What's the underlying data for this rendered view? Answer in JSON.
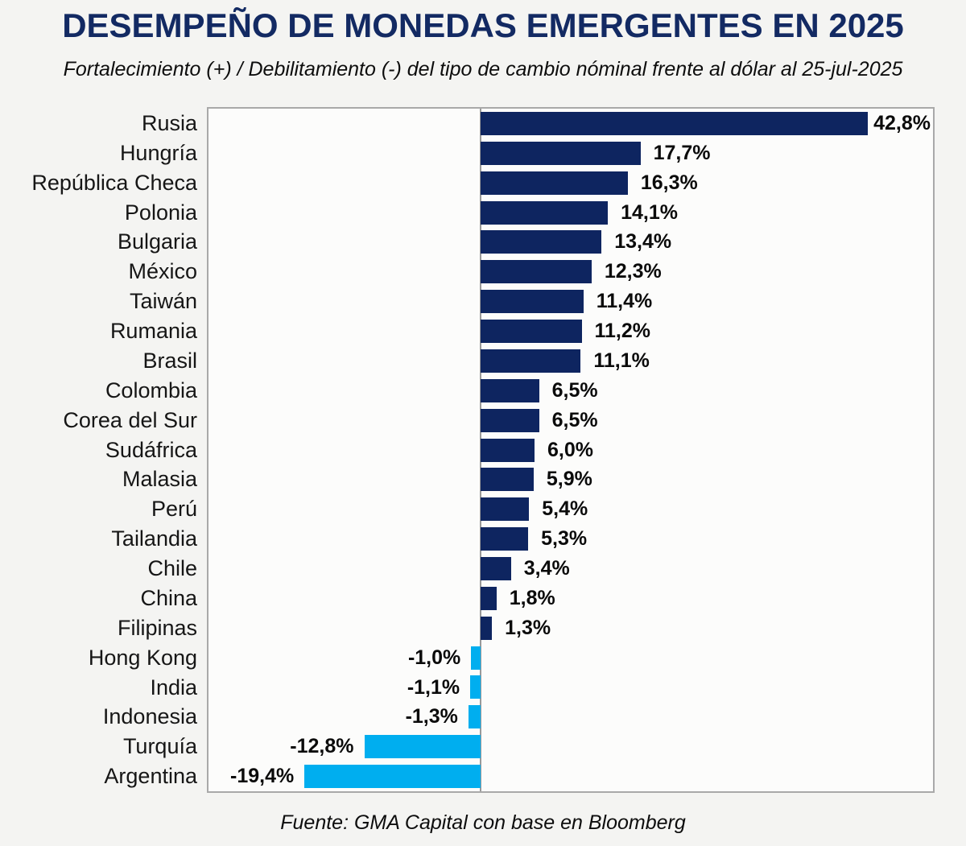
{
  "title": "DESEMPEÑO DE MONEDAS EMERGENTES EN 2025",
  "subtitle": "Fortalecimiento (+) / Debilitamiento (-) del tipo de cambio nóminal frente al dólar al 25-jul-2025",
  "source": "Fuente: GMA Capital con base en Bloomberg",
  "colors": {
    "title": "#132a63",
    "positive_bar": "#0e2560",
    "negative_bar": "#00aeef",
    "plot_border": "#a9a9a9",
    "background": "#f4f4f2"
  },
  "chart_data": {
    "type": "bar",
    "orientation": "horizontal",
    "title": "DESEMPEÑO DE MONEDAS EMERGENTES EN 2025",
    "subtitle": "Fortalecimiento (+) / Debilitamiento (-) del tipo de cambio nóminal frente al dólar al 25-jul-2025",
    "xlabel": "",
    "ylabel": "",
    "xlim": [
      -30,
      50
    ],
    "grid": false,
    "zero_line": true,
    "legend": "none",
    "categories": [
      "Rusia",
      "Hungría",
      "República Checa",
      "Polonia",
      "Bulgaria",
      "México",
      "Taiwán",
      "Rumania",
      "Brasil",
      "Colombia",
      "Corea del Sur",
      "Sudáfrica",
      "Malasia",
      "Perú",
      "Tailandia",
      "Chile",
      "China",
      "Filipinas",
      "Hong Kong",
      "India",
      "Indonesia",
      "Turquía",
      "Argentina"
    ],
    "values": [
      42.8,
      17.7,
      16.3,
      14.1,
      13.4,
      12.3,
      11.4,
      11.2,
      11.1,
      6.5,
      6.5,
      6.0,
      5.9,
      5.4,
      5.3,
      3.4,
      1.8,
      1.3,
      -1.0,
      -1.1,
      -1.3,
      -12.8,
      -19.4
    ],
    "value_labels": [
      "42,8%",
      "17,7%",
      "16,3%",
      "14,1%",
      "13,4%",
      "12,3%",
      "11,4%",
      "11,2%",
      "11,1%",
      "6,5%",
      "6,5%",
      "6,0%",
      "5,9%",
      "5,4%",
      "5,3%",
      "3,4%",
      "1,8%",
      "1,3%",
      "-1,0%",
      "-1,1%",
      "-1,3%",
      "-12,8%",
      "-19,4%"
    ],
    "positive_color": "#0e2560",
    "negative_color": "#00aeef"
  }
}
